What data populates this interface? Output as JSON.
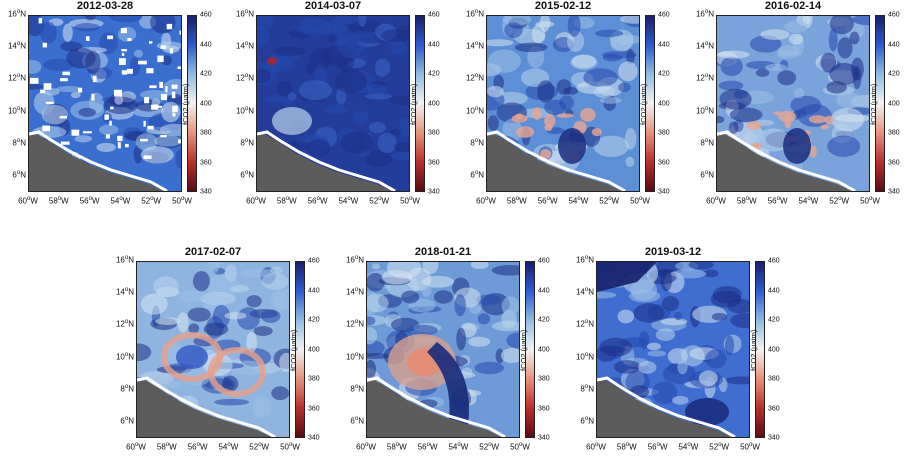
{
  "colorbar": {
    "label": "fCO2 (μatm)",
    "ticks": [
      "460",
      "440",
      "420",
      "400",
      "380",
      "360",
      "340"
    ],
    "min": 340,
    "max": 460,
    "colors": [
      "#1b1f6b",
      "#2d5bd0",
      "#8fbce0",
      "#f2f2f2",
      "#e6937a",
      "#b8302c",
      "#5a0b14"
    ]
  },
  "axes": {
    "lat_ticks": [
      "16°N",
      "14°N",
      "12°N",
      "10°N",
      "8°N",
      "6°N"
    ],
    "lon_ticks": [
      "60°W",
      "58°W",
      "56°W",
      "54°W",
      "52°W",
      "50°W"
    ],
    "lat_range": [
      5,
      16
    ],
    "lon_range": [
      -60,
      -50
    ]
  },
  "land_color": "#5c5c5c",
  "panels": [
    {
      "date": "2012-03-28",
      "base": "#3a6fd0",
      "pattern": "cloudy"
    },
    {
      "date": "2014-03-07",
      "base": "#243c9a",
      "pattern": "dark"
    },
    {
      "date": "2015-02-12",
      "base": "#5d8fd6",
      "pattern": "plume"
    },
    {
      "date": "2016-02-14",
      "base": "#7aa3dc",
      "pattern": "plume-light"
    },
    {
      "date": "2017-02-07",
      "base": "#8fb4df",
      "pattern": "rings"
    },
    {
      "date": "2018-01-21",
      "base": "#6e9bd8",
      "pattern": "eddy"
    },
    {
      "date": "2019-03-12",
      "base": "#3f6ed0",
      "pattern": "mixed"
    }
  ]
}
